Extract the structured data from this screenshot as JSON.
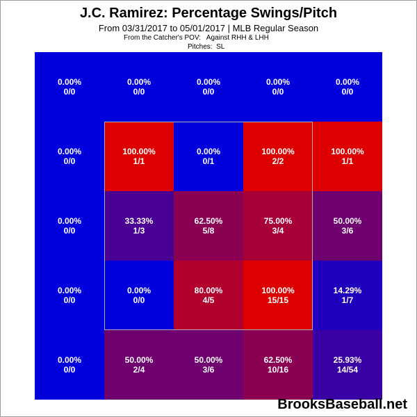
{
  "title": "J.C. Ramirez: Percentage Swings/Pitch",
  "subtitle": "From 03/31/2017 to 05/01/2017 | MLB Regular Season",
  "pov": "From the Catcher's POV:   Against RHH & LHH",
  "pitches": "Pitches:  SL",
  "watermark": "BrooksBaseball.net",
  "colors": {
    "low": "#0000dd",
    "high": "#dd0000",
    "zone_border": "#b0b0b0"
  },
  "chart_data": {
    "type": "heatmap",
    "title": "J.C. Ramirez: Percentage Swings/Pitch",
    "rows": 5,
    "cols": 5,
    "cells": [
      [
        {
          "pct": "0.00%",
          "count": "0/0",
          "value": 0
        },
        {
          "pct": "0.00%",
          "count": "0/0",
          "value": 0
        },
        {
          "pct": "0.00%",
          "count": "0/0",
          "value": 0
        },
        {
          "pct": "0.00%",
          "count": "0/0",
          "value": 0
        },
        {
          "pct": "0.00%",
          "count": "0/0",
          "value": 0
        }
      ],
      [
        {
          "pct": "0.00%",
          "count": "0/0",
          "value": 0
        },
        {
          "pct": "100.00%",
          "count": "1/1",
          "value": 100
        },
        {
          "pct": "0.00%",
          "count": "0/1",
          "value": 0
        },
        {
          "pct": "100.00%",
          "count": "2/2",
          "value": 100
        },
        {
          "pct": "100.00%",
          "count": "1/1",
          "value": 100
        }
      ],
      [
        {
          "pct": "0.00%",
          "count": "0/0",
          "value": 0
        },
        {
          "pct": "33.33%",
          "count": "1/3",
          "value": 33.33
        },
        {
          "pct": "62.50%",
          "count": "5/8",
          "value": 62.5
        },
        {
          "pct": "75.00%",
          "count": "3/4",
          "value": 75
        },
        {
          "pct": "50.00%",
          "count": "3/6",
          "value": 50
        }
      ],
      [
        {
          "pct": "0.00%",
          "count": "0/0",
          "value": 0
        },
        {
          "pct": "0.00%",
          "count": "0/0",
          "value": 0
        },
        {
          "pct": "80.00%",
          "count": "4/5",
          "value": 80
        },
        {
          "pct": "100.00%",
          "count": "15/15",
          "value": 100
        },
        {
          "pct": "14.29%",
          "count": "1/7",
          "value": 14.29
        }
      ],
      [
        {
          "pct": "0.00%",
          "count": "0/0",
          "value": 0
        },
        {
          "pct": "50.00%",
          "count": "2/4",
          "value": 50
        },
        {
          "pct": "50.00%",
          "count": "3/6",
          "value": 50
        },
        {
          "pct": "62.50%",
          "count": "10/16",
          "value": 62.5
        },
        {
          "pct": "25.93%",
          "count": "14/54",
          "value": 25.93
        }
      ]
    ]
  }
}
